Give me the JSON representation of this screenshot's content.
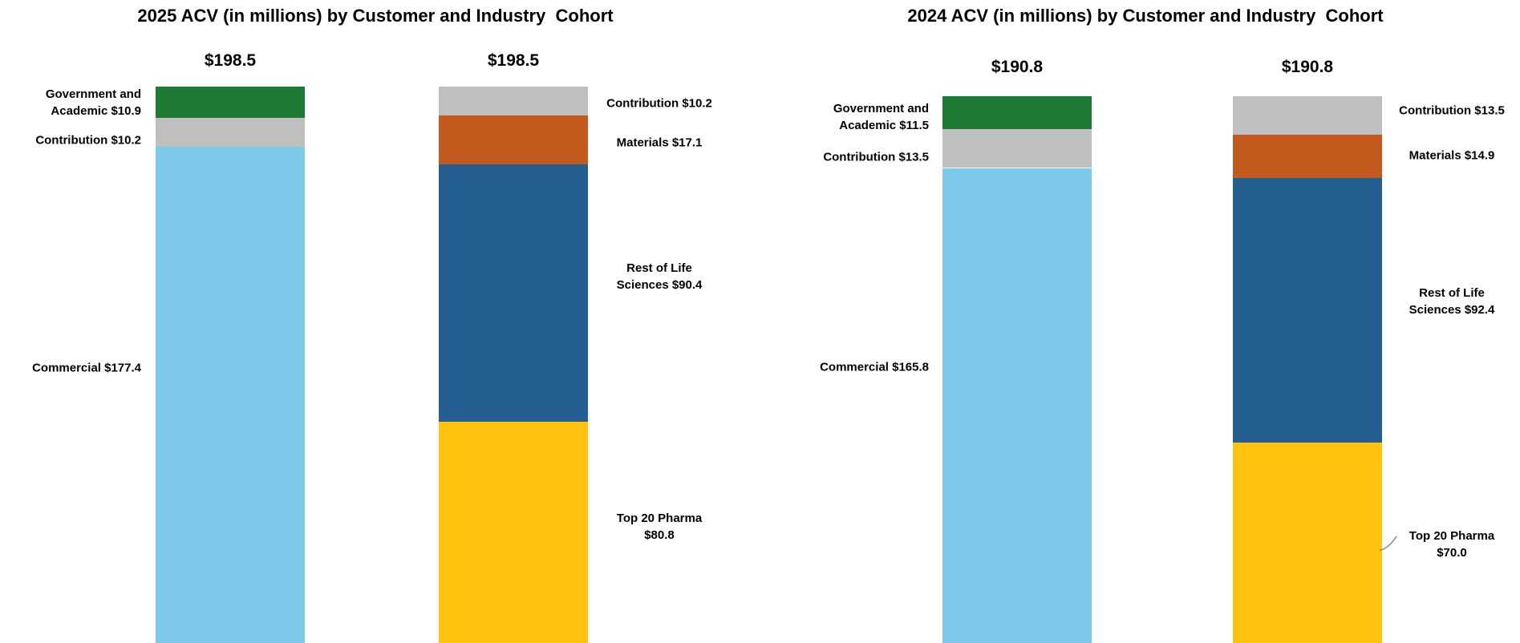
{
  "page": {
    "background_color": "#ffffff",
    "text_color": "#000000"
  },
  "chart_data": [
    {
      "type": "bar",
      "stacked": true,
      "title": "2025 ACV (in millions) by Customer and Industry  Cohort",
      "legend_position": "none",
      "axes_visible": false,
      "grid": false,
      "clipped_at_bottom": true,
      "stacks": [
        {
          "name": "customer-cohort-2025",
          "total": 198.5,
          "total_label": "$198.5",
          "segments": [
            {
              "name": "Government and Academic",
              "value": 10.9,
              "color": "#1E7B34",
              "label_lines": [
                "Government and",
                "Academic $10.9"
              ]
            },
            {
              "name": "Contribution",
              "value": 10.2,
              "color": "#BFBFBF",
              "label_lines": [
                "Contribution $10.2"
              ]
            },
            {
              "name": "Commercial",
              "value": 177.4,
              "color": "#7DC9E9",
              "label_lines": [
                "Commercial $177.4"
              ]
            }
          ]
        },
        {
          "name": "industry-cohort-2025",
          "total": 198.5,
          "total_label": "$198.5",
          "segments": [
            {
              "name": "Contribution",
              "value": 10.2,
              "color": "#BFBFBF",
              "label_lines": [
                "Contribution $10.2"
              ]
            },
            {
              "name": "Materials",
              "value": 17.1,
              "color": "#C25A1D",
              "label_lines": [
                "Materials $17.1"
              ]
            },
            {
              "name": "Rest of Life Sciences",
              "value": 90.4,
              "color": "#255E91",
              "label_lines": [
                "Rest of Life",
                "Sciences $90.4"
              ]
            },
            {
              "name": "Top 20 Pharma",
              "value": 80.8,
              "color": "#FFC20E",
              "label_lines": [
                "Top 20 Pharma",
                "$80.8"
              ]
            }
          ]
        }
      ]
    },
    {
      "type": "bar",
      "stacked": true,
      "title": "2024 ACV (in millions) by Customer and Industry  Cohort",
      "legend_position": "none",
      "axes_visible": false,
      "grid": false,
      "clipped_at_bottom": true,
      "stacks": [
        {
          "name": "customer-cohort-2024",
          "total": 190.8,
          "total_label": "$190.8",
          "segments": [
            {
              "name": "Government and Academic",
              "value": 11.5,
              "color": "#1E7B34",
              "label_lines": [
                "Government and",
                "Academic $11.5"
              ]
            },
            {
              "name": "Contribution",
              "value": 13.5,
              "color": "#BFBFBF",
              "label_lines": [
                "Contribution $13.5"
              ]
            },
            {
              "name": "Commercial",
              "value": 165.8,
              "color": "#7DC9E9",
              "label_lines": [
                "Commercial $165.8"
              ]
            }
          ]
        },
        {
          "name": "industry-cohort-2024",
          "total": 190.8,
          "total_label": "$190.8",
          "segments": [
            {
              "name": "Contribution",
              "value": 13.5,
              "color": "#BFBFBF",
              "label_lines": [
                "Contribution $13.5"
              ]
            },
            {
              "name": "Materials",
              "value": 14.9,
              "color": "#C25A1D",
              "label_lines": [
                "Materials $14.9"
              ]
            },
            {
              "name": "Rest of Life Sciences",
              "value": 92.4,
              "color": "#255E91",
              "label_lines": [
                "Rest of Life",
                "Sciences $92.4"
              ]
            },
            {
              "name": "Top 20 Pharma",
              "value": 70.0,
              "color": "#FFC20E",
              "label_lines": [
                "Top 20 Pharma",
                "$70.0"
              ]
            }
          ]
        }
      ]
    }
  ]
}
